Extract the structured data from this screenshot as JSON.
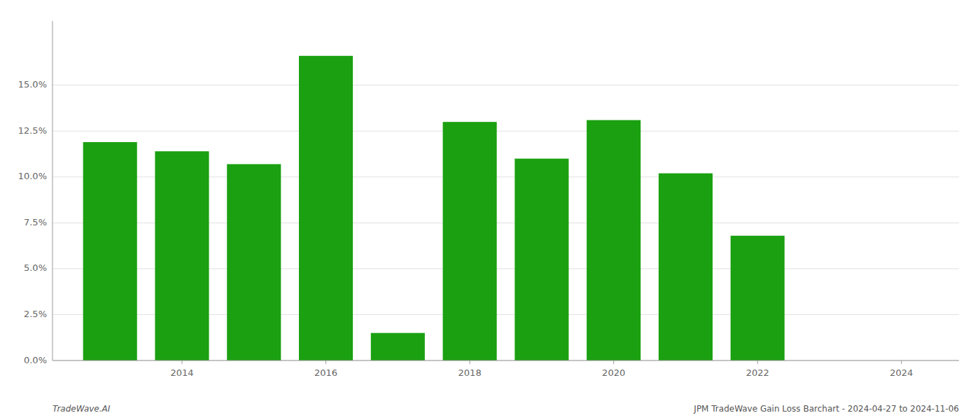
{
  "chart_data": {
    "type": "bar",
    "x": [
      2013,
      2014,
      2015,
      2016,
      2017,
      2018,
      2019,
      2020,
      2021,
      2022,
      2023
    ],
    "values": [
      0.119,
      0.114,
      0.107,
      0.166,
      0.015,
      0.13,
      0.11,
      0.131,
      0.102,
      0.068,
      0.0
    ],
    "color": "#1aa010",
    "xlim": [
      2012.2,
      2024.8
    ],
    "xticks": [
      2014,
      2016,
      2018,
      2020,
      2022,
      2024
    ],
    "ylim": [
      0,
      0.185
    ],
    "yticks": [
      {
        "value": 0.0,
        "label": "0.0%"
      },
      {
        "value": 0.025,
        "label": "2.5%"
      },
      {
        "value": 0.05,
        "label": "5.0%"
      },
      {
        "value": 0.075,
        "label": "7.5%"
      },
      {
        "value": 0.1,
        "label": "10.0%"
      },
      {
        "value": 0.125,
        "label": "12.5%"
      },
      {
        "value": 0.15,
        "label": "15.0%"
      }
    ],
    "grid": true,
    "annotations": [
      "TradeWave.AI",
      "JPM TradeWave Gain Loss Barchart - 2024-04-27 to 2024-11-06"
    ]
  }
}
